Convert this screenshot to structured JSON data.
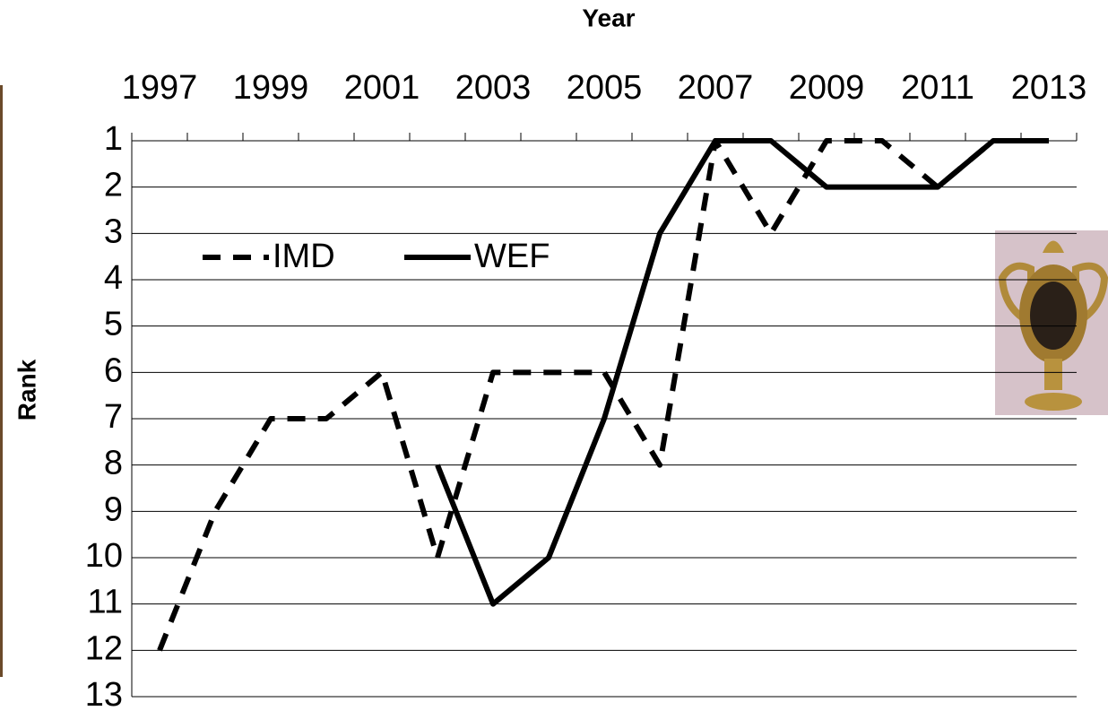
{
  "chart_data": {
    "type": "line",
    "x_label": "Year",
    "y_label": "Rank",
    "categories": [
      "1997",
      null,
      "1999",
      null,
      "2001",
      null,
      "2003",
      null,
      "2005",
      null,
      "2007",
      null,
      "2009",
      null,
      "2011",
      null,
      "2013"
    ],
    "series": [
      {
        "name": "IMD",
        "color": "#000000",
        "dash": true,
        "values": [
          12,
          9,
          7,
          7,
          6,
          10,
          6,
          6,
          6,
          8,
          1,
          3,
          1,
          1,
          2,
          1,
          1
        ]
      },
      {
        "name": "WEF",
        "color": "#000000",
        "dash": false,
        "values": [
          null,
          null,
          null,
          null,
          null,
          8,
          11,
          10,
          7,
          3,
          1,
          1,
          2,
          2,
          2,
          1,
          1
        ]
      }
    ],
    "ylim": [
      1,
      13
    ],
    "y_inverted": true,
    "yticks": [
      1,
      2,
      3,
      4,
      5,
      6,
      7,
      8,
      9,
      10,
      11,
      12,
      13
    ],
    "grid": true,
    "x_axis_position": "top",
    "legend": "upper left"
  }
}
